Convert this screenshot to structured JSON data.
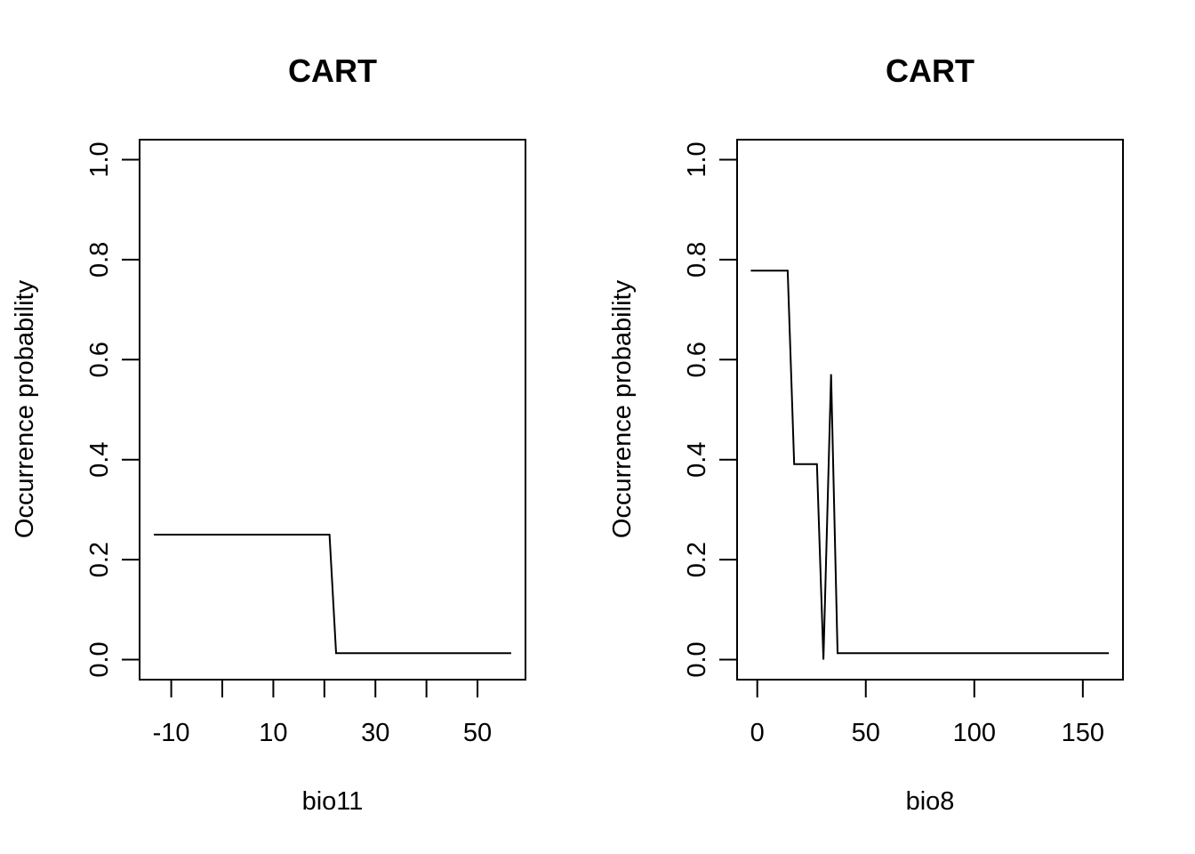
{
  "chart_data": [
    {
      "type": "line",
      "title": "CART",
      "xlabel": "bio11",
      "ylabel": "Occurrence probability",
      "xlim": [
        -16.2,
        59.4
      ],
      "ylim": [
        -0.04,
        1.04
      ],
      "x_ticks": [
        -10,
        0,
        10,
        20,
        30,
        40,
        50
      ],
      "x_tick_labels": [
        "-10",
        "",
        "10",
        "",
        "30",
        "",
        "50"
      ],
      "y_ticks": [
        0,
        0.2,
        0.4,
        0.6,
        0.8,
        1.0
      ],
      "y_tick_labels": [
        "0.0",
        "0.2",
        "0.4",
        "0.6",
        "0.8",
        "1.0"
      ],
      "grid": false,
      "series": [
        {
          "x": [
            -13.4,
            21.0,
            22.3,
            56.6
          ],
          "y": [
            0.25,
            0.25,
            0.013,
            0.013
          ]
        }
      ]
    },
    {
      "type": "line",
      "title": "CART",
      "xlabel": "bio8",
      "ylabel": "Occurrence probability",
      "xlim": [
        -9.3,
        168.5
      ],
      "ylim": [
        -0.04,
        1.04
      ],
      "x_ticks": [
        0,
        50,
        100,
        150
      ],
      "x_tick_labels": [
        "0",
        "50",
        "100",
        "150"
      ],
      "y_ticks": [
        0,
        0.2,
        0.4,
        0.6,
        0.8,
        1.0
      ],
      "y_tick_labels": [
        "0.0",
        "0.2",
        "0.4",
        "0.6",
        "0.8",
        "1.0"
      ],
      "grid": false,
      "series": [
        {
          "x": [
            -3,
            14,
            17,
            27.5,
            30.5,
            34,
            37,
            162
          ],
          "y": [
            0.778,
            0.778,
            0.391,
            0.391,
            0.0,
            0.571,
            0.013,
            0.013
          ]
        }
      ]
    }
  ]
}
